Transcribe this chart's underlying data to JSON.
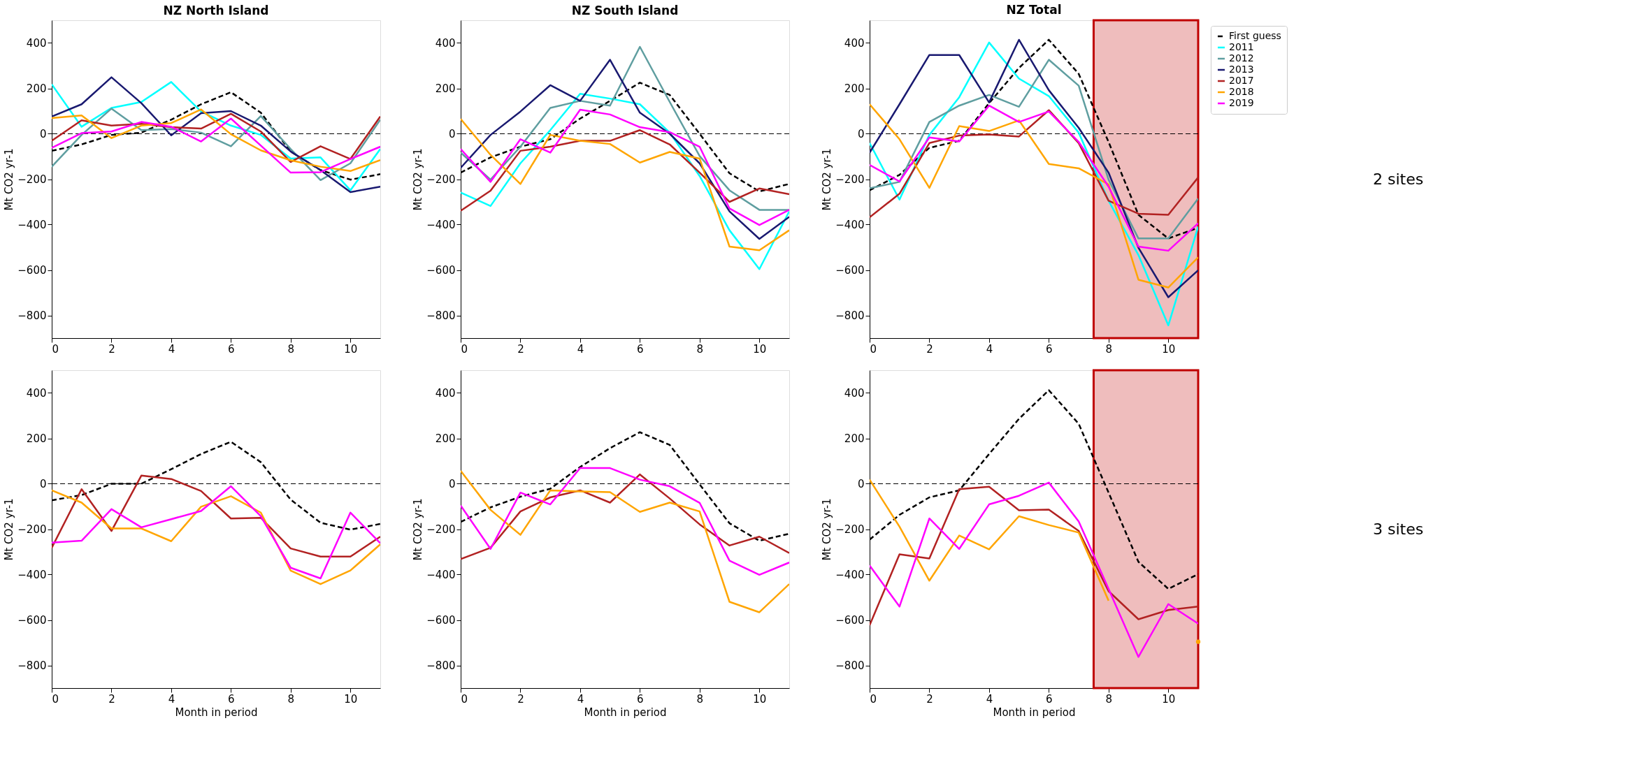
{
  "chart_data": [
    {
      "type": "line",
      "title": "NZ North Island",
      "ylabel": "Mt CO2 yr-1",
      "x": [
        0,
        1,
        2,
        3,
        4,
        5,
        6,
        7,
        8,
        9,
        10,
        11
      ],
      "xlim": [
        0,
        11
      ],
      "xticks": [
        0,
        2,
        4,
        6,
        8,
        10
      ],
      "ylim": [
        -900,
        500
      ],
      "yticks": [
        -800,
        -600,
        -400,
        -200,
        0,
        200,
        400
      ],
      "grid": false,
      "legend": false,
      "ref_lines": [
        {
          "axis": "y",
          "value": 0,
          "color": "#000000",
          "line_style": "dashed"
        }
      ],
      "series": [
        {
          "color": "#000000",
          "line_style": "dashed",
          "values": [
            -75,
            -47,
            -5,
            5,
            62,
            130,
            183,
            93,
            -78,
            -160,
            -202,
            -178
          ]
        },
        {
          "color": "#00ffff",
          "values": [
            218,
            31,
            114,
            140,
            228,
            98,
            36,
            -5,
            -109,
            -104,
            -249,
            -67
          ]
        },
        {
          "color": "#5f9ea0",
          "values": [
            -145,
            -5,
            111,
            16,
            21,
            5,
            -55,
            78,
            -67,
            -204,
            -130,
            62
          ]
        },
        {
          "color": "#191970",
          "values": [
            76,
            130,
            249,
            135,
            -7,
            91,
            100,
            36,
            -78,
            -160,
            -257,
            -233
          ]
        },
        {
          "color": "#b22222",
          "values": [
            -31,
            59,
            36,
            44,
            29,
            23,
            88,
            10,
            -124,
            -55,
            -111,
            76
          ]
        },
        {
          "color": "#ffa500",
          "values": [
            69,
            81,
            -19,
            36,
            47,
            107,
            -2,
            -73,
            -117,
            -145,
            -164,
            -116
          ]
        },
        {
          "color": "#ff00ff",
          "values": [
            -62,
            3,
            10,
            52,
            31,
            -34,
            67,
            -52,
            -171,
            -169,
            -111,
            -57
          ]
        }
      ]
    },
    {
      "type": "line",
      "title": "NZ South Island",
      "ylabel": "Mt CO2 yr-1",
      "x": [
        0,
        1,
        2,
        3,
        4,
        5,
        6,
        7,
        8,
        9,
        10,
        11
      ],
      "xlim": [
        0,
        11
      ],
      "xticks": [
        0,
        2,
        4,
        6,
        8,
        10
      ],
      "ylim": [
        -900,
        500
      ],
      "yticks": [
        -800,
        -600,
        -400,
        -200,
        0,
        200,
        400
      ],
      "grid": false,
      "legend": false,
      "ref_lines": [
        {
          "axis": "y",
          "value": 0,
          "color": "#000000",
          "line_style": "dashed"
        }
      ],
      "series": [
        {
          "color": "#000000",
          "line_style": "dashed",
          "values": [
            -171,
            -104,
            -57,
            -24,
            67,
            145,
            225,
            171,
            0,
            -174,
            -254,
            -221
          ]
        },
        {
          "color": "#00ffff",
          "values": [
            -259,
            -318,
            -130,
            16,
            176,
            155,
            130,
            5,
            -186,
            -425,
            -596,
            -342
          ]
        },
        {
          "color": "#5f9ea0",
          "values": [
            -83,
            -202,
            -57,
            114,
            145,
            124,
            383,
            140,
            -98,
            -249,
            -335,
            -335
          ]
        },
        {
          "color": "#191970",
          "values": [
            -150,
            -5,
            98,
            214,
            145,
            326,
            93,
            0,
            -130,
            -342,
            -463,
            -366
          ]
        },
        {
          "color": "#b22222",
          "values": [
            -339,
            -251,
            -75,
            -57,
            -31,
            -31,
            16,
            -47,
            -171,
            -300,
            -241,
            -266
          ]
        },
        {
          "color": "#ffa500",
          "values": [
            65,
            -93,
            -221,
            -5,
            -31,
            -45,
            -127,
            -80,
            -109,
            -497,
            -513,
            -425
          ]
        },
        {
          "color": "#ff00ff",
          "values": [
            -67,
            -212,
            -24,
            -83,
            106,
            85,
            29,
            7,
            -57,
            -329,
            -402,
            -335
          ]
        }
      ]
    },
    {
      "type": "line",
      "title": "NZ Total",
      "ylabel": "Mt CO2 yr-1",
      "x": [
        0,
        1,
        2,
        3,
        4,
        5,
        6,
        7,
        8,
        9,
        10,
        11
      ],
      "xlim": [
        0,
        11
      ],
      "xticks": [
        0,
        2,
        4,
        6,
        8,
        10
      ],
      "ylim": [
        -900,
        500
      ],
      "yticks": [
        -800,
        -600,
        -400,
        -200,
        0,
        200,
        400
      ],
      "grid": false,
      "legend": "right",
      "annotations": [
        "2 sites"
      ],
      "ref_lines": [
        {
          "axis": "y",
          "value": 0,
          "color": "#000000",
          "line_style": "dashed"
        }
      ],
      "bands": [
        {
          "axis": "x",
          "from": 7.5,
          "to": 11,
          "color": "#c00000"
        }
      ],
      "series": [
        {
          "name": "First guess",
          "color": "#000000",
          "line_style": "dashed",
          "values": [
            -249,
            -181,
            -62,
            -31,
            135,
            290,
            414,
            264,
            -36,
            -357,
            -461,
            -414
          ]
        },
        {
          "name": "2011",
          "color": "#00ffff",
          "values": [
            -41,
            -290,
            -5,
            161,
            402,
            243,
            166,
            5,
            -295,
            -534,
            -844,
            -409
          ]
        },
        {
          "name": "2012",
          "color": "#5f9ea0",
          "values": [
            -240,
            -212,
            52,
            124,
            171,
            119,
            326,
            212,
            -202,
            -461,
            -461,
            -285
          ]
        },
        {
          "name": "2013",
          "color": "#191970",
          "values": [
            -83,
            130,
            347,
            347,
            138,
            414,
            192,
            26,
            -171,
            -502,
            -720,
            -601
          ]
        },
        {
          "name": "2017",
          "color": "#b22222",
          "values": [
            -368,
            -264,
            -41,
            -8,
            -3,
            -12,
            104,
            -41,
            -295,
            -352,
            -357,
            -192
          ]
        },
        {
          "name": "2018",
          "color": "#ffa500",
          "values": [
            130,
            -24,
            -238,
            34,
            12,
            59,
            -133,
            -152,
            -223,
            -643,
            -677,
            -544
          ]
        },
        {
          "name": "2019",
          "color": "#ff00ff",
          "values": [
            -137,
            -210,
            -16,
            -34,
            124,
            52,
            98,
            -36,
            -233,
            -497,
            -515,
            -394
          ]
        }
      ]
    },
    {
      "type": "line",
      "xlabel": "Month in period",
      "ylabel": "Mt CO2 yr-1",
      "x": [
        0,
        1,
        2,
        3,
        4,
        5,
        6,
        7,
        8,
        9,
        10,
        11
      ],
      "xlim": [
        0,
        11
      ],
      "xticks": [
        0,
        2,
        4,
        6,
        8,
        10
      ],
      "ylim": [
        -900,
        500
      ],
      "yticks": [
        -800,
        -600,
        -400,
        -200,
        0,
        200,
        400
      ],
      "grid": false,
      "legend": false,
      "ref_lines": [
        {
          "axis": "y",
          "value": 0,
          "color": "#000000",
          "line_style": "dashed"
        }
      ],
      "series": [
        {
          "color": "#000000",
          "line_style": "dashed",
          "values": [
            -73,
            -50,
            0,
            0,
            64,
            131,
            185,
            95,
            -70,
            -172,
            -202,
            -177
          ]
        },
        {
          "color": "#b22222",
          "values": [
            -282,
            -24,
            -208,
            36,
            21,
            -32,
            -153,
            -150,
            -285,
            -321,
            -321,
            -233
          ]
        },
        {
          "color": "#ffa500",
          "values": [
            -29,
            -83,
            -197,
            -197,
            -253,
            -101,
            -55,
            -127,
            -383,
            -442,
            -382,
            -267
          ]
        },
        {
          "color": "#ff00ff",
          "values": [
            -259,
            -251,
            -112,
            -192,
            -156,
            -120,
            -11,
            -143,
            -370,
            -417,
            -127,
            -262
          ]
        }
      ]
    },
    {
      "type": "line",
      "xlabel": "Month in period",
      "ylabel": "Mt CO2 yr-1",
      "x": [
        0,
        1,
        2,
        3,
        4,
        5,
        6,
        7,
        8,
        9,
        10,
        11
      ],
      "xlim": [
        0,
        11
      ],
      "xticks": [
        0,
        2,
        4,
        6,
        8,
        10
      ],
      "ylim": [
        -900,
        500
      ],
      "yticks": [
        -800,
        -600,
        -400,
        -200,
        0,
        200,
        400
      ],
      "grid": false,
      "legend": false,
      "ref_lines": [
        {
          "axis": "y",
          "value": 0,
          "color": "#000000",
          "line_style": "dashed"
        }
      ],
      "series": [
        {
          "color": "#000000",
          "line_style": "dashed",
          "values": [
            -168,
            -104,
            -57,
            -22,
            74,
            157,
            227,
            171,
            -3,
            -174,
            -251,
            -220
          ]
        },
        {
          "color": "#b22222",
          "values": [
            -332,
            -282,
            -122,
            -60,
            -29,
            -83,
            41,
            -65,
            -179,
            -272,
            -233,
            -305
          ]
        },
        {
          "color": "#ffa500",
          "values": [
            57,
            -115,
            -225,
            -29,
            -34,
            -37,
            -124,
            -83,
            -122,
            -520,
            -566,
            -442
          ]
        },
        {
          "color": "#ff00ff",
          "values": [
            -96,
            -287,
            -39,
            -91,
            69,
            69,
            18,
            -11,
            -84,
            -339,
            -401,
            -347
          ]
        }
      ]
    },
    {
      "type": "line",
      "xlabel": "Month in period",
      "ylabel": "Mt CO2 yr-1",
      "x": [
        0,
        1,
        2,
        3,
        4,
        5,
        6,
        7,
        8,
        9,
        10,
        11
      ],
      "xlim": [
        0,
        11
      ],
      "xticks": [
        0,
        2,
        4,
        6,
        8,
        10
      ],
      "ylim": [
        -900,
        500
      ],
      "yticks": [
        -800,
        -600,
        -400,
        -200,
        0,
        200,
        400
      ],
      "grid": false,
      "legend": false,
      "annotations": [
        "3 sites"
      ],
      "ref_lines": [
        {
          "axis": "y",
          "value": 0,
          "color": "#000000",
          "line_style": "dashed"
        }
      ],
      "bands": [
        {
          "axis": "x",
          "from": 7.5,
          "to": 11,
          "color": "#c00000"
        }
      ],
      "series": [
        {
          "color": "#000000",
          "line_style": "dashed",
          "values": [
            -246,
            -137,
            -60,
            -29,
            131,
            286,
            412,
            264,
            -39,
            -344,
            -463,
            -398
          ]
        },
        {
          "color": "#b22222",
          "values": [
            -623,
            -311,
            -329,
            -24,
            -13,
            -117,
            -114,
            -208,
            -473,
            -597,
            -556,
            -541
          ]
        },
        {
          "color": "#ffa500",
          "values": [
            18,
            -189,
            -427,
            -228,
            -289,
            -143,
            -182,
            -215,
            -515,
            null,
            null,
            -696
          ]
        },
        {
          "color": "#ff00ff",
          "values": [
            -360,
            -541,
            -153,
            -287,
            -91,
            -53,
            5,
            -166,
            -463,
            -763,
            -530,
            -616
          ]
        }
      ]
    }
  ]
}
